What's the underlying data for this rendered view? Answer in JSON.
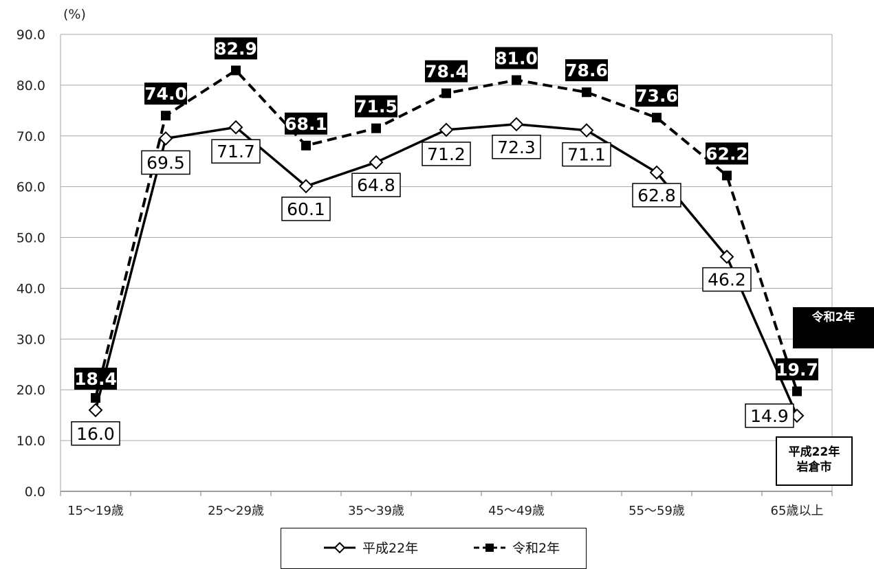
{
  "chart_data": {
    "type": "line",
    "unit_label": "(%)",
    "x_tick_labels": [
      "15～19歳",
      "",
      "25～29歳",
      "",
      "35～39歳",
      "",
      "45～49歳",
      "",
      "55～59歳",
      "",
      "65歳以上"
    ],
    "ylim": [
      0,
      90
    ],
    "y_ticks": [
      "0.0",
      "10.0",
      "20.0",
      "30.0",
      "40.0",
      "50.0",
      "60.0",
      "70.0",
      "80.0",
      "90.0"
    ],
    "grid": true,
    "series": [
      {
        "name": "平成22年",
        "style": "solid",
        "marker": "diamond-open",
        "color": "#000000",
        "values": [
          16.0,
          69.5,
          71.7,
          60.1,
          64.8,
          71.2,
          72.3,
          71.1,
          62.8,
          46.2,
          14.9
        ],
        "labels": [
          "16.0",
          "69.5",
          "71.7",
          "60.1",
          "64.8",
          "71.2",
          "72.3",
          "71.1",
          "62.8",
          "46.2",
          "14.9"
        ]
      },
      {
        "name": "令和2年",
        "style": "dashed",
        "marker": "square-filled",
        "color": "#000000",
        "values": [
          18.4,
          74.0,
          82.9,
          68.1,
          71.5,
          78.4,
          81.0,
          78.6,
          73.6,
          62.2,
          19.7
        ],
        "labels": [
          "18.4",
          "74.0",
          "82.9",
          "68.1",
          "71.5",
          "78.4",
          "81.0",
          "78.6",
          "73.6",
          "62.2",
          "19.7"
        ]
      }
    ],
    "end_labels": {
      "series2": "令和2年",
      "series1_line1": "平成22年",
      "series1_line2": "岩倉市"
    },
    "legend_position": "bottom"
  }
}
